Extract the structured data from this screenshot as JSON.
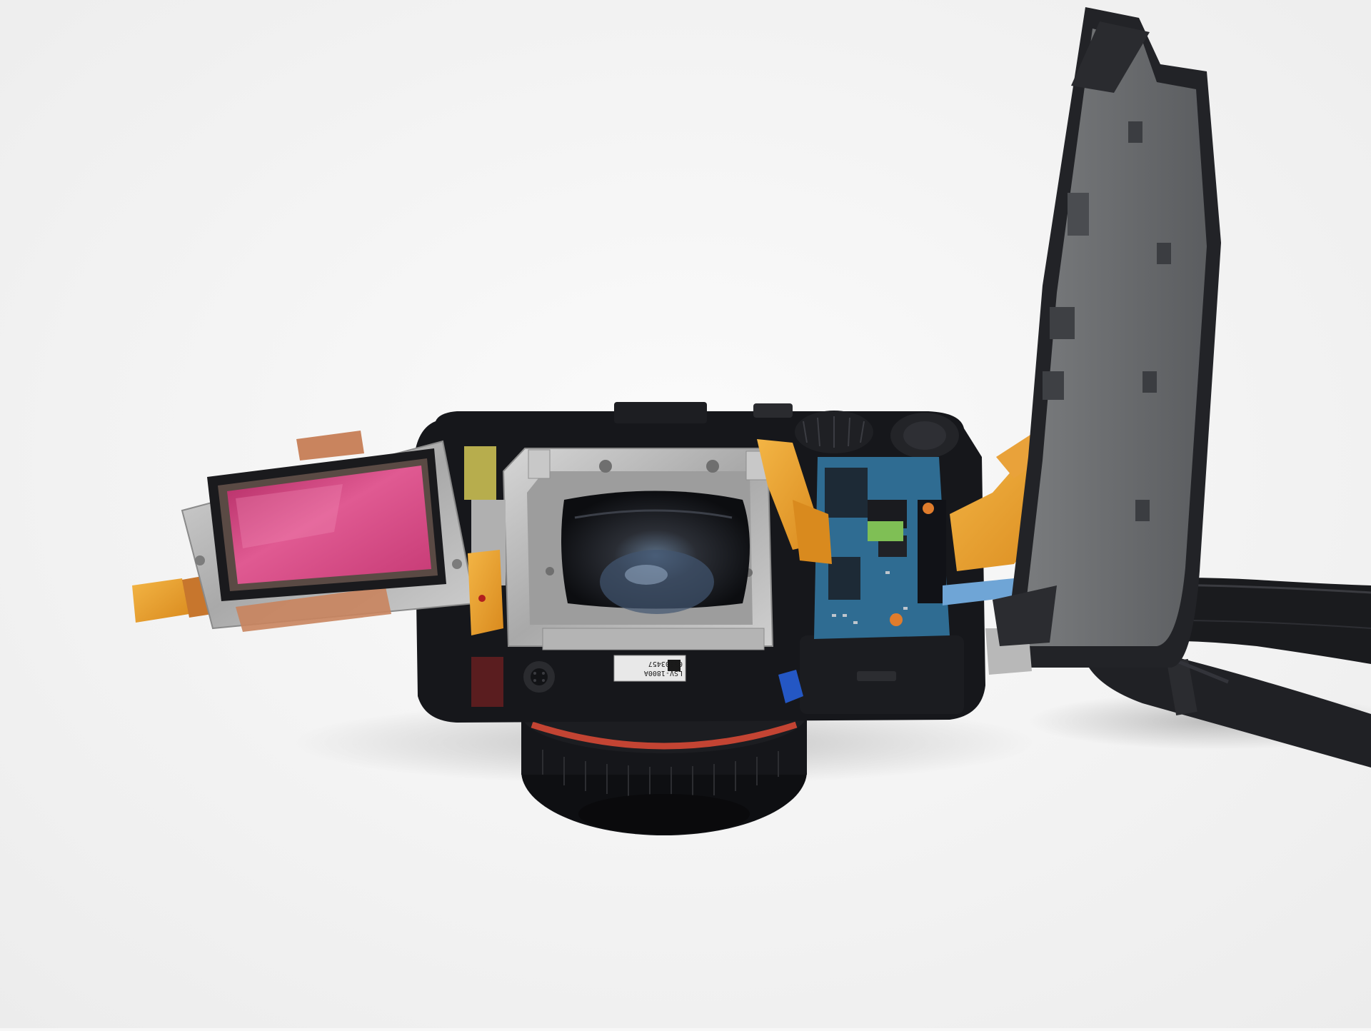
{
  "photo": {
    "label": {
      "line1": "LSV-1800A",
      "line2": "00003457"
    }
  },
  "palette": {
    "background": "#f7f7f7",
    "body": "#16171b",
    "sensor_glass": "#d3427c",
    "metal": "#bdbdbd",
    "pcb": "#2f6c92",
    "flex_cable": "#e79c2c",
    "copper_tape": "#c9845e",
    "lens_ring": "#c34433"
  }
}
